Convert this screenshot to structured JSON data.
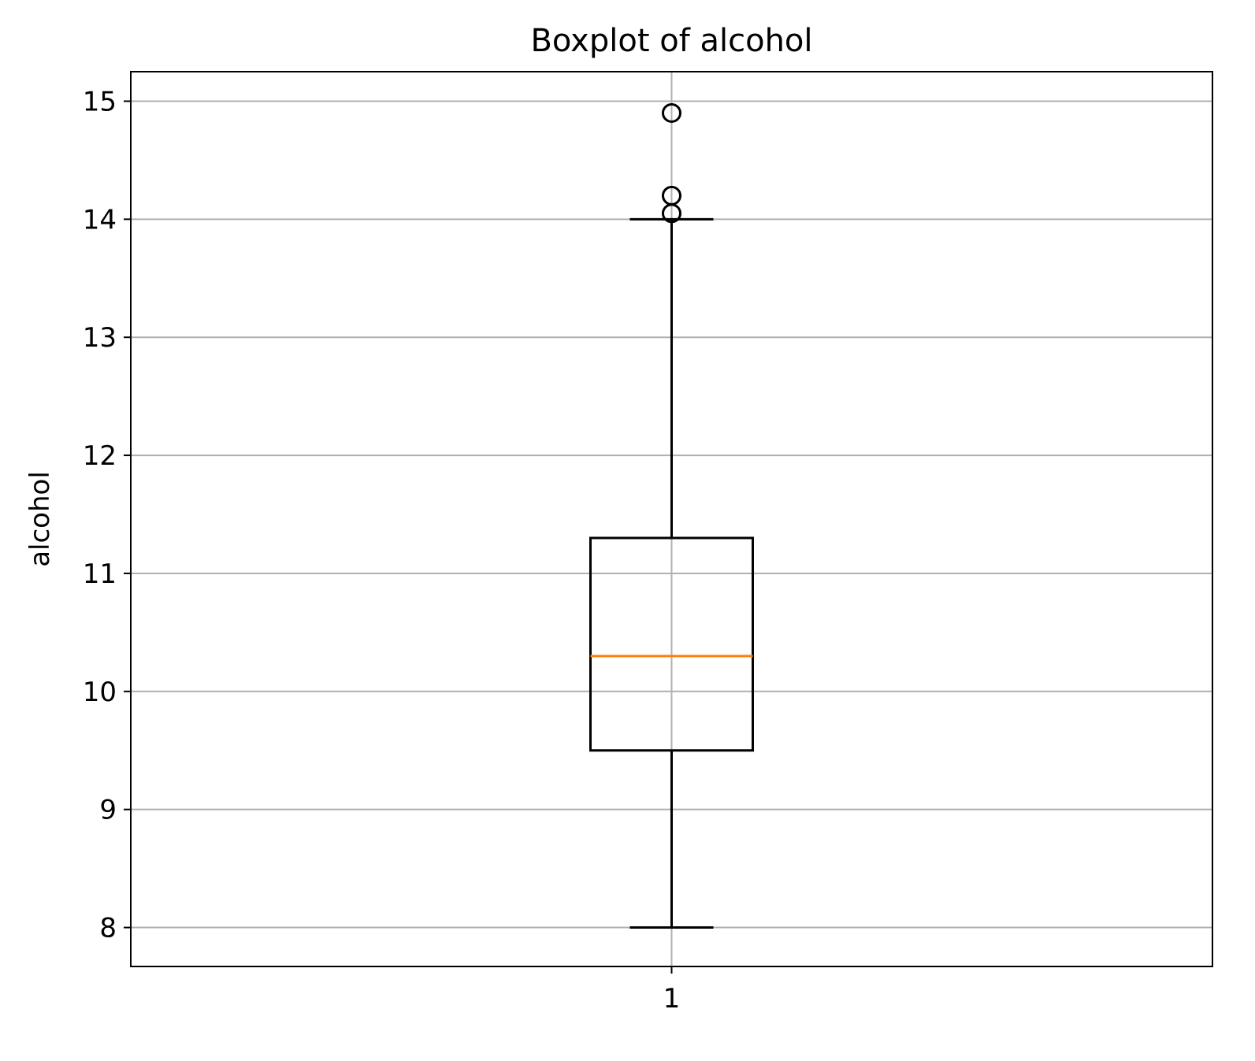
{
  "chart_data": {
    "type": "boxplot",
    "title": "Boxplot of alcohol",
    "xlabel": "",
    "ylabel": "alcohol",
    "categories": [
      "1"
    ],
    "ylim": [
      7.67,
      15.25
    ],
    "yticks": [
      8,
      9,
      10,
      11,
      12,
      13,
      14,
      15
    ],
    "grid": true,
    "boxes": [
      {
        "category": "1",
        "whisker_low": 8.0,
        "q1": 9.5,
        "median": 10.3,
        "q3": 11.3,
        "whisker_high": 14.0,
        "outliers": [
          14.05,
          14.2,
          14.9
        ]
      }
    ],
    "colors": {
      "median": "#ff7f0e",
      "box": "#000000",
      "grid": "#b0b0b0"
    }
  }
}
